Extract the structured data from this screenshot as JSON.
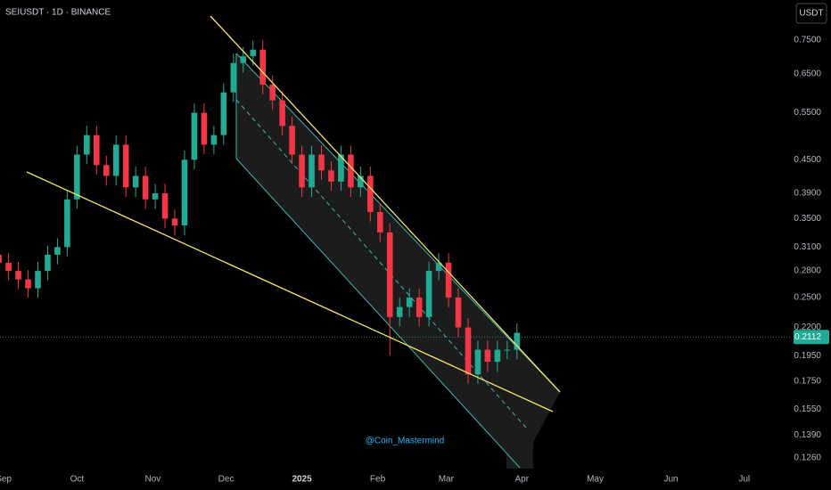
{
  "chart_data": {
    "type": "candlestick",
    "title": "SEIUSDT · 1D · BINANCE",
    "currency": "USDT",
    "watermark": "@Coin_Mastermind",
    "log_scale": true,
    "grid": false,
    "up_color": "#22ab94",
    "down_color": "#f23645",
    "x": [
      -2,
      2,
      6,
      10,
      14,
      18,
      22,
      26,
      30,
      34,
      38,
      42,
      46,
      50,
      54,
      58,
      62,
      66,
      70,
      74,
      78,
      82,
      86,
      90,
      94,
      98,
      102,
      106,
      110,
      114,
      118,
      122,
      126,
      130,
      134,
      138,
      142,
      146,
      150,
      154,
      158,
      162,
      166,
      170,
      174,
      178,
      182,
      186,
      190,
      194,
      198,
      202,
      206,
      210
    ],
    "open": [
      0.3,
      0.29,
      0.28,
      0.27,
      0.26,
      0.28,
      0.3,
      0.31,
      0.38,
      0.46,
      0.5,
      0.44,
      0.42,
      0.48,
      0.4,
      0.42,
      0.38,
      0.39,
      0.35,
      0.34,
      0.45,
      0.55,
      0.48,
      0.5,
      0.6,
      0.68,
      0.7,
      0.72,
      0.62,
      0.58,
      0.52,
      0.46,
      0.4,
      0.46,
      0.43,
      0.41,
      0.46,
      0.4,
      0.42,
      0.36,
      0.33,
      0.23,
      0.24,
      0.25,
      0.23,
      0.28,
      0.29,
      0.25,
      0.22,
      0.18,
      0.2,
      0.19,
      0.2,
      0.2
    ],
    "high": [
      0.312,
      0.302,
      0.291,
      0.281,
      0.291,
      0.312,
      0.322,
      0.395,
      0.478,
      0.52,
      0.52,
      0.458,
      0.499,
      0.499,
      0.437,
      0.437,
      0.406,
      0.406,
      0.364,
      0.468,
      0.572,
      0.572,
      0.52,
      0.624,
      0.707,
      0.728,
      0.749,
      0.749,
      0.645,
      0.603,
      0.541,
      0.478,
      0.478,
      0.478,
      0.447,
      0.478,
      0.478,
      0.437,
      0.437,
      0.374,
      0.343,
      0.25,
      0.26,
      0.26,
      0.291,
      0.302,
      0.302,
      0.26,
      0.229,
      0.208,
      0.208,
      0.208,
      0.208,
      0.224
    ],
    "low": [
      0.278,
      0.269,
      0.259,
      0.25,
      0.25,
      0.269,
      0.288,
      0.298,
      0.365,
      0.442,
      0.422,
      0.403,
      0.403,
      0.384,
      0.384,
      0.365,
      0.365,
      0.336,
      0.326,
      0.326,
      0.432,
      0.461,
      0.461,
      0.48,
      0.576,
      0.653,
      0.672,
      0.595,
      0.557,
      0.499,
      0.442,
      0.384,
      0.384,
      0.413,
      0.394,
      0.394,
      0.384,
      0.384,
      0.346,
      0.317,
      0.195,
      0.221,
      0.23,
      0.221,
      0.221,
      0.269,
      0.24,
      0.211,
      0.173,
      0.173,
      0.182,
      0.182,
      0.192,
      0.192
    ],
    "close": [
      0.29,
      0.28,
      0.27,
      0.26,
      0.28,
      0.3,
      0.31,
      0.38,
      0.46,
      0.5,
      0.44,
      0.42,
      0.48,
      0.4,
      0.42,
      0.38,
      0.39,
      0.35,
      0.34,
      0.45,
      0.55,
      0.48,
      0.5,
      0.6,
      0.68,
      0.7,
      0.72,
      0.62,
      0.58,
      0.52,
      0.46,
      0.4,
      0.46,
      0.43,
      0.41,
      0.46,
      0.4,
      0.42,
      0.36,
      0.33,
      0.23,
      0.24,
      0.25,
      0.23,
      0.28,
      0.29,
      0.25,
      0.22,
      0.18,
      0.2,
      0.19,
      0.2,
      0.2,
      0.215
    ],
    "last_price": 0.2112,
    "ylim": [
      0.1195,
      0.89
    ],
    "yticks": [
      {
        "value": 0.75,
        "label": "0.7500"
      },
      {
        "value": 0.65,
        "label": "0.6500"
      },
      {
        "value": 0.55,
        "label": "0.5500"
      },
      {
        "value": 0.45,
        "label": "0.4500"
      },
      {
        "value": 0.39,
        "label": "0.3900"
      },
      {
        "value": 0.35,
        "label": "0.3500"
      },
      {
        "value": 0.31,
        "label": "0.3100"
      },
      {
        "value": 0.28,
        "label": "0.2800"
      },
      {
        "value": 0.25,
        "label": "0.2500"
      },
      {
        "value": 0.22,
        "label": "0.2200"
      },
      {
        "value": 0.195,
        "label": "0.1950"
      },
      {
        "value": 0.175,
        "label": "0.1750"
      },
      {
        "value": 0.155,
        "label": "0.1550"
      },
      {
        "value": 0.139,
        "label": "0.1390"
      },
      {
        "value": 0.126,
        "label": "0.1260"
      }
    ],
    "xlim": [
      -1.5,
      319.5
    ],
    "xticks": [
      {
        "value": 0,
        "label": "Sep"
      },
      {
        "value": 30,
        "label": "Oct"
      },
      {
        "value": 61,
        "label": "Nov"
      },
      {
        "value": 91,
        "label": "Dec"
      },
      {
        "value": 122,
        "label": "2025"
      },
      {
        "value": 153,
        "label": "Feb"
      },
      {
        "value": 181,
        "label": "Mar"
      },
      {
        "value": 212,
        "label": "Apr"
      },
      {
        "value": 242,
        "label": "May"
      },
      {
        "value": 273,
        "label": "Jun"
      },
      {
        "value": 303,
        "label": "Jul"
      }
    ]
  }
}
